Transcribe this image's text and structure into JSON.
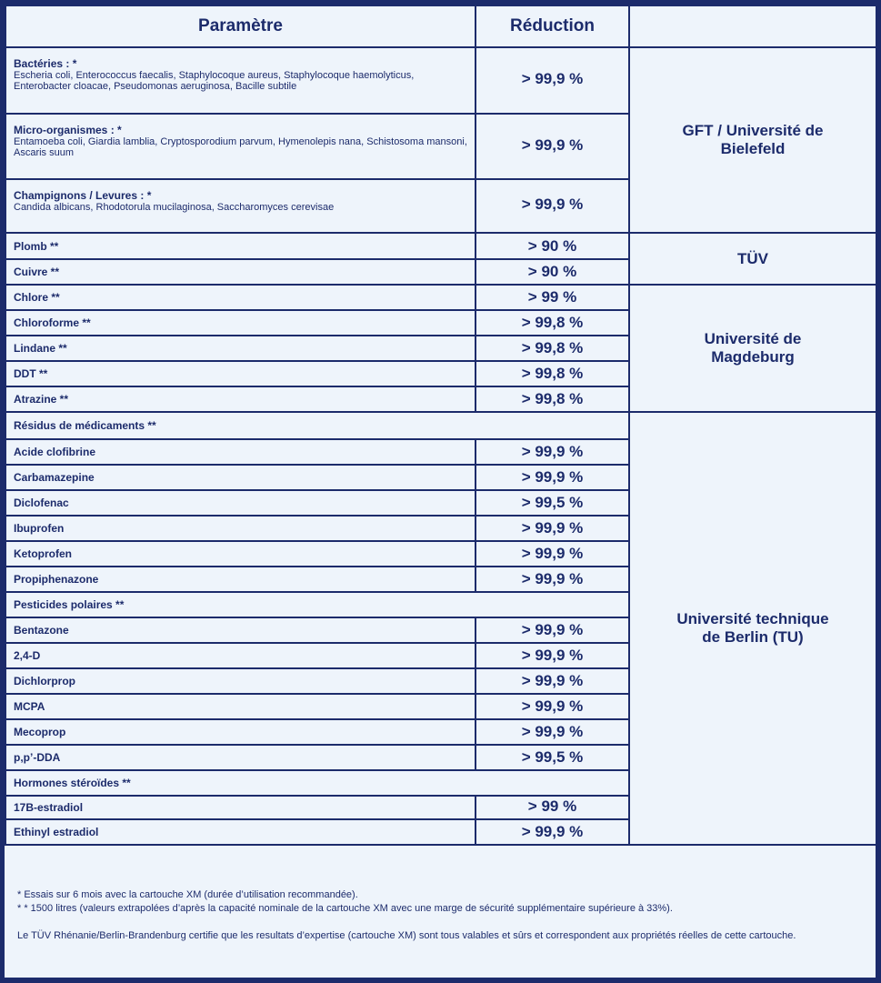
{
  "header": {
    "param": "Paramètre",
    "reduction": "Réduction",
    "lab": ""
  },
  "rows": [
    {
      "name": "Bactéries : *",
      "detail": "Escheria coli, Enterococcus faecalis, Staphylocoque aureus, Staphylocoque haemolyticus, Enterobacter cloacae, Pseudomonas aeruginosa, Bacille subtile",
      "value": "> 99,9 %"
    },
    {
      "name": "Micro-organismes : *",
      "detail": "Entamoeba coli, Giardia lamblia, Cryptosporodium parvum, Hymenolepis nana, Schistosoma mansoni, Ascaris suum",
      "value": "> 99,9 %"
    },
    {
      "name": "Champignons / Levures : *",
      "detail": "Candida albicans, Rhodotorula mucilaginosa, Saccharomyces cerevisae",
      "value": "> 99,9 %"
    },
    {
      "name": "Plomb **",
      "value": "> 90 %"
    },
    {
      "name": "Cuivre **",
      "value": "> 90 %"
    },
    {
      "name": "Chlore **",
      "value": "> 99 %"
    },
    {
      "name": "Chloroforme **",
      "value": "> 99,8 %"
    },
    {
      "name": "Lindane **",
      "value": "> 99,8 %"
    },
    {
      "name": "DDT **",
      "value": "> 99,8 %"
    },
    {
      "name": "Atrazine **",
      "value": "> 99,8 %"
    },
    {
      "section": "Résidus de médicaments **"
    },
    {
      "name": "Acide clofibrine",
      "value": "> 99,9 %"
    },
    {
      "name": "Carbamazepine",
      "value": "> 99,9 %"
    },
    {
      "name": "Diclofenac",
      "value": "> 99,5 %"
    },
    {
      "name": "Ibuprofen",
      "value": "> 99,9 %"
    },
    {
      "name": "Ketoprofen",
      "value": "> 99,9 %"
    },
    {
      "name": "Propiphenazone",
      "value": "> 99,9 %"
    },
    {
      "section": "Pesticides polaires **"
    },
    {
      "name": "Bentazone",
      "value": "> 99,9 %"
    },
    {
      "name": "2,4-D",
      "value": "> 99,9 %"
    },
    {
      "name": "Dichlorprop",
      "value": "> 99,9 %"
    },
    {
      "name": "MCPA",
      "value": "> 99,9 %"
    },
    {
      "name": "Mecoprop",
      "value": "> 99,9 %"
    },
    {
      "name": "p,p’-DDA",
      "value": "> 99,5 %"
    },
    {
      "section": "Hormones stéroïdes **"
    },
    {
      "name": "17B-estradiol",
      "value": "> 99 %"
    },
    {
      "name": "Ethinyl estradiol",
      "value": "> 99,9 %"
    }
  ],
  "labs": [
    {
      "label": "GFT / Université de Bielefeld",
      "start": 0,
      "span": 3
    },
    {
      "label": "TÜV",
      "start": 3,
      "span": 2
    },
    {
      "label": "Université de Magdeburg",
      "start": 5,
      "span": 5
    },
    {
      "label": "Université technique de Berlin (TU)",
      "start": 10,
      "span": 17
    }
  ],
  "footnotes": {
    "one": "* Essais sur 6 mois avec la cartouche XM (durée d’utilisation recommandée).",
    "two": "* * 1500 litres (valeurs extrapolées d’après la capacité nominale de la cartouche XM avec une marge de sécurité supplémentaire supérieure à 33%).",
    "cert": "Le TÜV Rhénanie/Berlin-Brandenburg certifie que les resultats d’expertise (cartouche XM) sont tous valables et sûrs et correspondent aux propriétés réelles de cette cartouche."
  }
}
